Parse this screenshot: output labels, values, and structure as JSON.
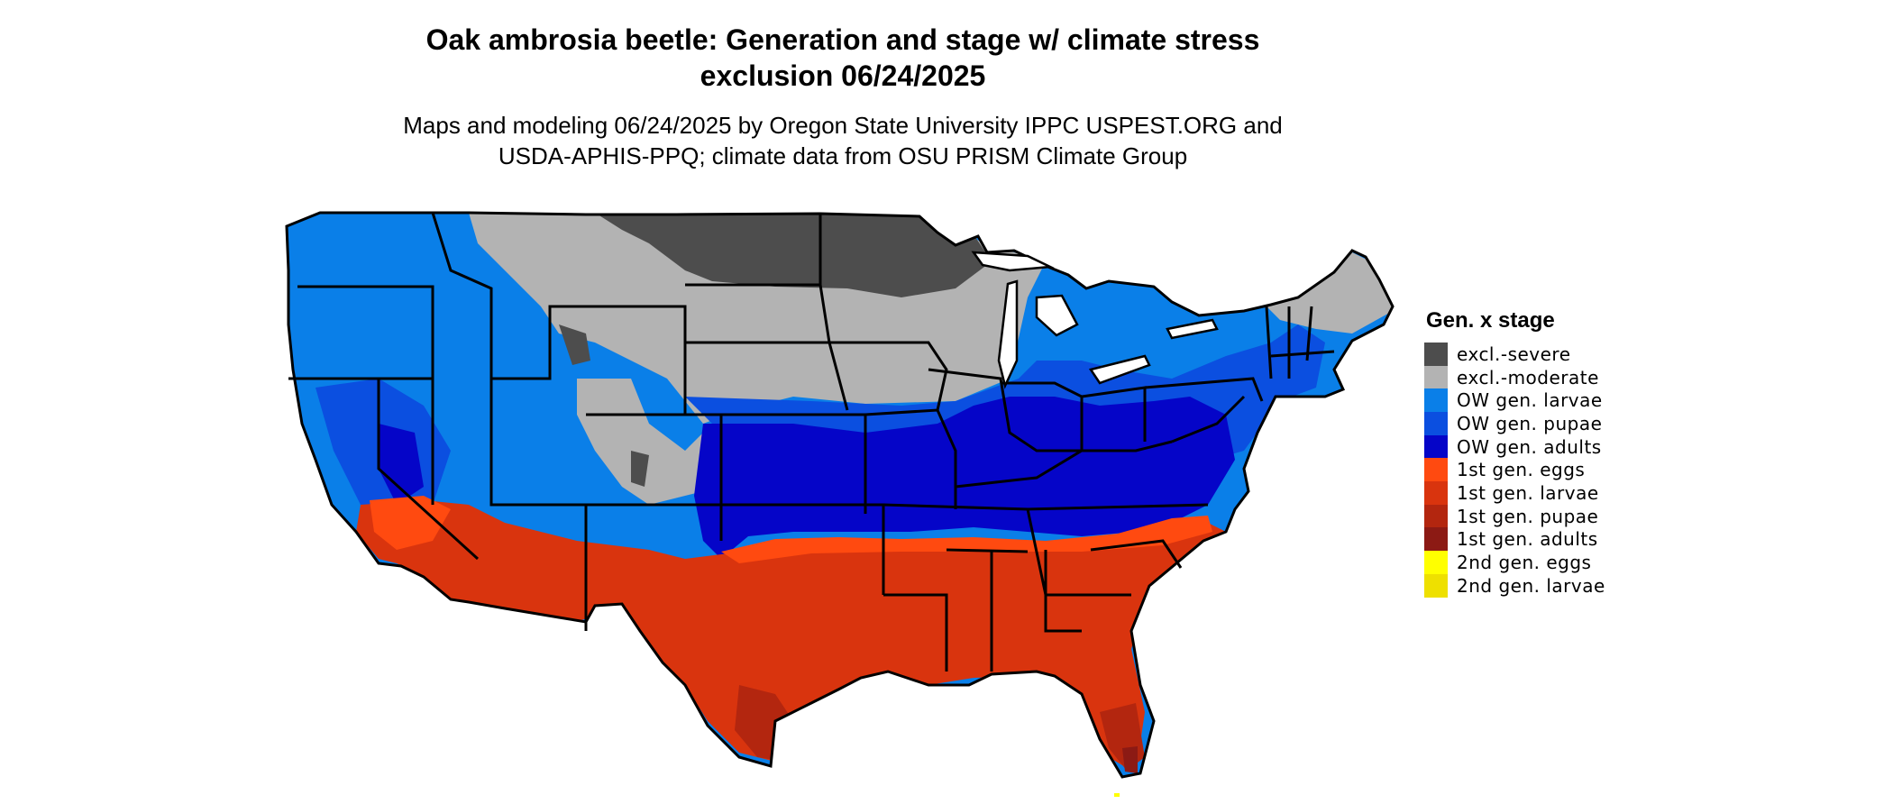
{
  "title_line1": "Oak ambrosia beetle: Generation and stage w/ climate stress",
  "title_line2": "exclusion 06/24/2025",
  "subtitle_line1": "Maps and modeling 06/24/2025 by Oregon State University IPPC USPEST.ORG and",
  "subtitle_line2": "USDA-APHIS-PPQ; climate data from OSU PRISM Climate Group",
  "legend": {
    "title": "Gen. x stage",
    "items": [
      {
        "label": "excl.-severe",
        "color": "#4d4d4d"
      },
      {
        "label": "excl.-moderate",
        "color": "#b3b3b3"
      },
      {
        "label": "OW gen. larvae",
        "color": "#0a7fe8"
      },
      {
        "label": "OW gen. pupae",
        "color": "#0b4fe0"
      },
      {
        "label": "OW gen. adults",
        "color": "#0505c8"
      },
      {
        "label": "1st gen. eggs",
        "color": "#ff4a10"
      },
      {
        "label": "1st gen. larvae",
        "color": "#d9340e"
      },
      {
        "label": "1st gen. pupae",
        "color": "#b3260f"
      },
      {
        "label": "1st gen. adults",
        "color": "#8c1a14"
      },
      {
        "label": "2nd gen. eggs",
        "color": "#ffff00"
      },
      {
        "label": "2nd gen. larvae",
        "color": "#eee000"
      }
    ]
  }
}
